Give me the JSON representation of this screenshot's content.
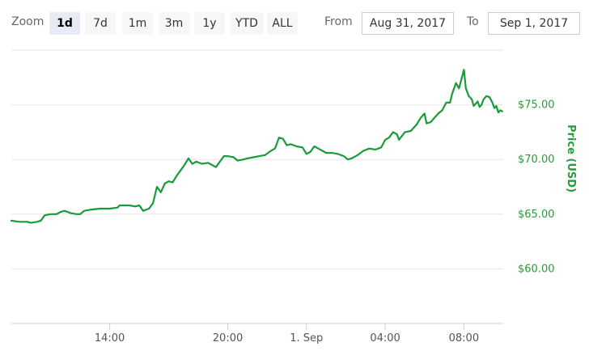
{
  "toolbar": {
    "zoom_label": "Zoom",
    "ranges": [
      "1d",
      "7d",
      "1m",
      "3m",
      "1y",
      "YTD",
      "ALL"
    ],
    "active_range": "1d",
    "from_label": "From",
    "from_value": "Aug 31, 2017",
    "to_label": "To",
    "to_value": "Sep 1, 2017"
  },
  "chart_data": {
    "type": "line",
    "title": "",
    "xlabel": "",
    "ylabel": "Price (USD)",
    "ylim": [
      55,
      80
    ],
    "yticks": [
      60,
      65,
      70,
      75
    ],
    "ytick_labels": [
      "$60.00",
      "$65.00",
      "$70.00",
      "$75.00"
    ],
    "x_unit": "hours since Aug 31, 2017 09:00",
    "xlim": [
      0,
      24
    ],
    "xticks": [
      5,
      11,
      15,
      19,
      23
    ],
    "xtick_labels": [
      "14:00",
      "20:00",
      "1. Sep",
      "04:00",
      "08:00"
    ],
    "grid": true,
    "legend": "none",
    "colors": {
      "line": "#1a9a3a",
      "axis_text": "#2a9a3a",
      "grid": "#e6e6e6",
      "tick_text": "#555555"
    },
    "series": [
      {
        "values": [
          [
            0.0,
            64.4
          ],
          [
            0.4,
            64.3
          ],
          [
            0.8,
            64.3
          ],
          [
            1.0,
            64.2
          ],
          [
            1.3,
            64.3
          ],
          [
            1.5,
            64.4
          ],
          [
            1.7,
            64.9
          ],
          [
            2.0,
            65.0
          ],
          [
            2.3,
            65.0
          ],
          [
            2.5,
            65.2
          ],
          [
            2.7,
            65.3
          ],
          [
            3.0,
            65.1
          ],
          [
            3.3,
            65.0
          ],
          [
            3.5,
            65.0
          ],
          [
            3.7,
            65.3
          ],
          [
            4.0,
            65.4
          ],
          [
            4.5,
            65.5
          ],
          [
            5.0,
            65.5
          ],
          [
            5.4,
            65.6
          ],
          [
            5.5,
            65.8
          ],
          [
            6.0,
            65.8
          ],
          [
            6.3,
            65.7
          ],
          [
            6.5,
            65.8
          ],
          [
            6.7,
            65.3
          ],
          [
            7.0,
            65.5
          ],
          [
            7.2,
            66.0
          ],
          [
            7.4,
            67.5
          ],
          [
            7.6,
            67.0
          ],
          [
            7.8,
            67.8
          ],
          [
            8.0,
            68.0
          ],
          [
            8.2,
            67.9
          ],
          [
            8.4,
            68.5
          ],
          [
            8.6,
            69.0
          ],
          [
            8.8,
            69.5
          ],
          [
            9.0,
            70.1
          ],
          [
            9.2,
            69.6
          ],
          [
            9.4,
            69.8
          ],
          [
            9.7,
            69.6
          ],
          [
            10.0,
            69.7
          ],
          [
            10.2,
            69.5
          ],
          [
            10.4,
            69.3
          ],
          [
            10.6,
            69.8
          ],
          [
            10.8,
            70.3
          ],
          [
            11.0,
            70.3
          ],
          [
            11.3,
            70.2
          ],
          [
            11.5,
            69.9
          ],
          [
            11.8,
            70.0
          ],
          [
            12.0,
            70.1
          ],
          [
            12.3,
            70.2
          ],
          [
            12.6,
            70.3
          ],
          [
            12.9,
            70.4
          ],
          [
            13.2,
            70.8
          ],
          [
            13.4,
            71.0
          ],
          [
            13.6,
            72.0
          ],
          [
            13.8,
            71.9
          ],
          [
            14.0,
            71.3
          ],
          [
            14.2,
            71.4
          ],
          [
            14.5,
            71.2
          ],
          [
            14.8,
            71.1
          ],
          [
            15.0,
            70.5
          ],
          [
            15.2,
            70.7
          ],
          [
            15.4,
            71.2
          ],
          [
            15.6,
            71.0
          ],
          [
            15.8,
            70.8
          ],
          [
            16.0,
            70.6
          ],
          [
            16.3,
            70.6
          ],
          [
            16.6,
            70.5
          ],
          [
            16.9,
            70.3
          ],
          [
            17.1,
            70.0
          ],
          [
            17.3,
            70.1
          ],
          [
            17.6,
            70.4
          ],
          [
            17.9,
            70.8
          ],
          [
            18.2,
            71.0
          ],
          [
            18.5,
            70.9
          ],
          [
            18.8,
            71.1
          ],
          [
            19.0,
            71.8
          ],
          [
            19.2,
            72.0
          ],
          [
            19.4,
            72.5
          ],
          [
            19.6,
            72.3
          ],
          [
            19.7,
            71.8
          ],
          [
            20.0,
            72.5
          ],
          [
            20.3,
            72.6
          ],
          [
            20.6,
            73.2
          ],
          [
            20.8,
            73.8
          ],
          [
            21.0,
            74.2
          ],
          [
            21.1,
            73.3
          ],
          [
            21.3,
            73.4
          ],
          [
            21.5,
            73.8
          ],
          [
            21.7,
            74.2
          ],
          [
            21.9,
            74.5
          ],
          [
            22.1,
            75.2
          ],
          [
            22.3,
            75.2
          ],
          [
            22.4,
            76.0
          ],
          [
            22.6,
            77.0
          ],
          [
            22.75,
            76.5
          ],
          [
            22.9,
            77.5
          ],
          [
            23.0,
            78.2
          ],
          [
            23.1,
            76.5
          ],
          [
            23.25,
            75.8
          ],
          [
            23.4,
            75.5
          ],
          [
            23.5,
            74.9
          ],
          [
            23.7,
            75.3
          ],
          [
            23.8,
            74.8
          ],
          [
            23.9,
            75.0
          ],
          [
            24.0,
            75.5
          ],
          [
            24.15,
            75.8
          ],
          [
            24.3,
            75.7
          ],
          [
            24.45,
            75.2
          ],
          [
            24.55,
            74.7
          ],
          [
            24.65,
            74.9
          ],
          [
            24.75,
            74.3
          ],
          [
            24.85,
            74.5
          ],
          [
            24.95,
            74.4
          ]
        ]
      }
    ]
  }
}
